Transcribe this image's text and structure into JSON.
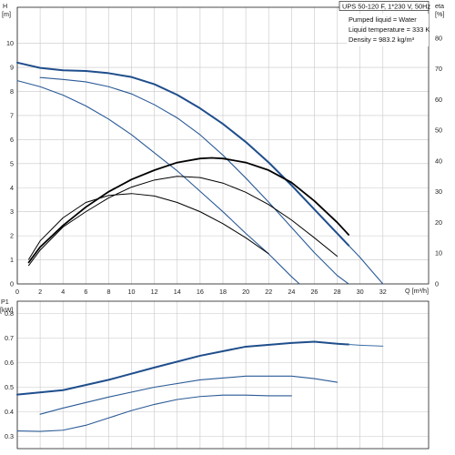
{
  "chart_data": [
    {
      "type": "line",
      "title": "UPS 50-120 F, 1*230 V, 50Hz",
      "annotations": [
        "Pumped liquid = Water",
        "Liquid temperature = 333 K",
        "Density = 983.2 kg/m³"
      ],
      "xlabel": "Q [m³/h]",
      "ylabel": "H\n[m]",
      "y2label": "eta\n[%]",
      "xlim": [
        0,
        36
      ],
      "ylim": [
        0,
        11.5
      ],
      "y2lim": [
        0,
        90
      ],
      "x_ticks": [
        "0",
        "2",
        "4",
        "6",
        "8",
        "10",
        "12",
        "14",
        "16",
        "18",
        "20",
        "22",
        "24",
        "26",
        "28",
        "30",
        "32"
      ],
      "y_ticks": [
        "0",
        "1",
        "2",
        "3",
        "4",
        "5",
        "6",
        "7",
        "8",
        "9",
        "10"
      ],
      "y2_ticks": [
        "0",
        "10",
        "20",
        "30",
        "40",
        "50",
        "60",
        "70",
        "80"
      ],
      "grid": true,
      "series": [
        {
          "axis": "y",
          "color": "#1f4e8c",
          "width": 2.0,
          "points": [
            [
              0,
              9.2
            ],
            [
              2,
              8.98
            ],
            [
              4,
              8.88
            ],
            [
              6,
              8.85
            ],
            [
              8,
              8.76
            ],
            [
              10,
              8.6
            ],
            [
              12,
              8.3
            ],
            [
              14,
              7.86
            ],
            [
              16,
              7.3
            ],
            [
              18,
              6.65
            ],
            [
              20,
              5.9
            ],
            [
              22,
              5.05
            ],
            [
              24,
              4.1
            ],
            [
              26,
              3.1
            ],
            [
              28,
              2.1
            ],
            [
              29,
              1.6
            ]
          ]
        },
        {
          "axis": "y",
          "color": "#2a5a96",
          "width": 1.1,
          "points": [
            [
              2,
              8.58
            ],
            [
              4,
              8.5
            ],
            [
              6,
              8.4
            ],
            [
              8,
              8.2
            ],
            [
              10,
              7.9
            ],
            [
              12,
              7.45
            ],
            [
              14,
              6.9
            ],
            [
              16,
              6.2
            ],
            [
              18,
              5.35
            ],
            [
              20,
              4.4
            ],
            [
              22,
              3.4
            ],
            [
              24,
              2.35
            ],
            [
              26,
              1.3
            ],
            [
              28,
              0.35
            ],
            [
              29,
              0
            ]
          ]
        },
        {
          "axis": "y",
          "color": "#2a5a96",
          "width": 1.1,
          "points": [
            [
              0,
              8.45
            ],
            [
              2,
              8.2
            ],
            [
              4,
              7.85
            ],
            [
              6,
              7.4
            ],
            [
              8,
              6.85
            ],
            [
              10,
              6.2
            ],
            [
              12,
              5.45
            ],
            [
              14,
              4.7
            ],
            [
              16,
              3.85
            ],
            [
              18,
              3.0
            ],
            [
              20,
              2.1
            ],
            [
              22,
              1.25
            ],
            [
              24,
              0.3
            ],
            [
              24.7,
              0
            ]
          ]
        },
        {
          "axis": "y",
          "color": "#2a5a96",
          "width": 1.1,
          "points": [
            [
              29,
              1.6
            ],
            [
              30,
              1.1
            ],
            [
              31,
              0.55
            ],
            [
              32,
              0
            ]
          ]
        },
        {
          "axis": "y2",
          "color": "#000000",
          "width": 1.8,
          "points": [
            [
              1,
              7
            ],
            [
              2,
              12
            ],
            [
              4,
              19
            ],
            [
              6,
              25
            ],
            [
              8,
              30
            ],
            [
              10,
              34
            ],
            [
              12,
              37
            ],
            [
              14,
              39.5
            ],
            [
              16,
              40.8
            ],
            [
              17,
              41
            ],
            [
              18,
              40.8
            ],
            [
              20,
              39.5
            ],
            [
              22,
              37
            ],
            [
              24,
              33
            ],
            [
              26,
              27
            ],
            [
              28,
              20
            ],
            [
              29,
              16
            ]
          ]
        },
        {
          "axis": "y2",
          "color": "#000000",
          "width": 1.0,
          "points": [
            [
              1,
              6
            ],
            [
              2,
              11
            ],
            [
              4,
              18.5
            ],
            [
              6,
              23.5
            ],
            [
              8,
              28
            ],
            [
              10,
              31.5
            ],
            [
              12,
              33.8
            ],
            [
              14,
              35
            ],
            [
              16,
              34.6
            ],
            [
              18,
              32.8
            ],
            [
              20,
              29.8
            ],
            [
              22,
              25.8
            ],
            [
              24,
              20.8
            ],
            [
              26,
              15
            ],
            [
              28,
              9
            ]
          ]
        },
        {
          "axis": "y2",
          "color": "#000000",
          "width": 1.0,
          "points": [
            [
              1,
              8
            ],
            [
              2,
              14
            ],
            [
              4,
              21.5
            ],
            [
              6,
              26.5
            ],
            [
              8,
              28.8
            ],
            [
              10,
              29.4
            ],
            [
              12,
              28.6
            ],
            [
              14,
              26.5
            ],
            [
              16,
              23.5
            ],
            [
              18,
              19.6
            ],
            [
              20,
              15
            ],
            [
              22,
              9.8
            ]
          ]
        }
      ]
    },
    {
      "type": "line",
      "xlabel": "",
      "ylabel": "P1\n[kW]",
      "xlim": [
        0,
        36
      ],
      "ylim": [
        0.25,
        0.85
      ],
      "y_ticks": [
        "0.3",
        "0.4",
        "0.5",
        "0.6",
        "0.7",
        "0.8"
      ],
      "grid": true,
      "series": [
        {
          "color": "#1f4e8c",
          "width": 2.0,
          "points": [
            [
              0,
              0.47
            ],
            [
              4,
              0.488
            ],
            [
              8,
              0.53
            ],
            [
              12,
              0.58
            ],
            [
              16,
              0.628
            ],
            [
              20,
              0.665
            ],
            [
              24,
              0.68
            ],
            [
              26,
              0.685
            ],
            [
              28,
              0.677
            ],
            [
              29,
              0.674
            ]
          ]
        },
        {
          "color": "#3b6ea5",
          "width": 1.0,
          "points": [
            [
              29,
              0.674
            ],
            [
              30,
              0.671
            ],
            [
              32,
              0.667
            ]
          ]
        },
        {
          "color": "#2a5a96",
          "width": 1.1,
          "points": [
            [
              2,
              0.39
            ],
            [
              4,
              0.415
            ],
            [
              8,
              0.46
            ],
            [
              12,
              0.5
            ],
            [
              16,
              0.53
            ],
            [
              20,
              0.545
            ],
            [
              24,
              0.545
            ],
            [
              26,
              0.535
            ],
            [
              28,
              0.52
            ]
          ]
        },
        {
          "color": "#2a5a96",
          "width": 1.1,
          "points": [
            [
              0,
              0.322
            ],
            [
              2,
              0.32
            ],
            [
              4,
              0.325
            ],
            [
              6,
              0.345
            ],
            [
              8,
              0.375
            ],
            [
              10,
              0.405
            ],
            [
              12,
              0.43
            ],
            [
              14,
              0.45
            ],
            [
              16,
              0.462
            ],
            [
              18,
              0.468
            ],
            [
              20,
              0.468
            ],
            [
              22,
              0.465
            ],
            [
              24,
              0.465
            ]
          ]
        }
      ]
    }
  ]
}
